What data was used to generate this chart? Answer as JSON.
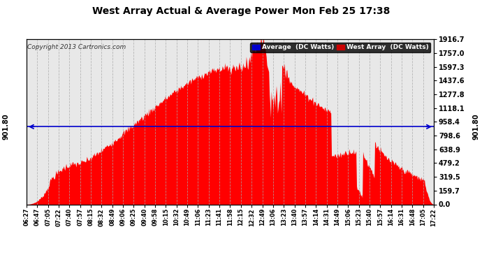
{
  "title": "West Array Actual & Average Power Mon Feb 25 17:38",
  "copyright": "Copyright 2013 Cartronics.com",
  "legend_avg": "Average  (DC Watts)",
  "legend_west": "West Array  (DC Watts)",
  "avg_line_value": 901.8,
  "avg_label": "901.80",
  "y_max": 1916.7,
  "y_min": 0.0,
  "yticks": [
    0.0,
    159.7,
    319.5,
    479.2,
    638.9,
    798.6,
    958.4,
    1118.1,
    1277.8,
    1437.6,
    1597.3,
    1757.0,
    1916.7
  ],
  "fill_color": "#ff0000",
  "bg_color": "#e8e8e8",
  "grid_color": "#aaaaaa",
  "avg_line_color": "#0000cc",
  "title_color": "#000000",
  "legend_avg_bg": "#0000cc",
  "legend_west_bg": "#cc0000",
  "x_labels": [
    "06:27",
    "06:47",
    "07:05",
    "07:22",
    "07:40",
    "07:57",
    "08:15",
    "08:32",
    "08:49",
    "09:06",
    "09:25",
    "09:40",
    "09:58",
    "10:15",
    "10:32",
    "10:49",
    "11:06",
    "11:23",
    "11:41",
    "11:58",
    "12:15",
    "12:32",
    "12:49",
    "13:06",
    "13:23",
    "13:40",
    "13:57",
    "14:14",
    "14:31",
    "14:49",
    "15:06",
    "15:23",
    "15:40",
    "15:57",
    "16:14",
    "16:31",
    "16:48",
    "17:05",
    "17:22"
  ]
}
